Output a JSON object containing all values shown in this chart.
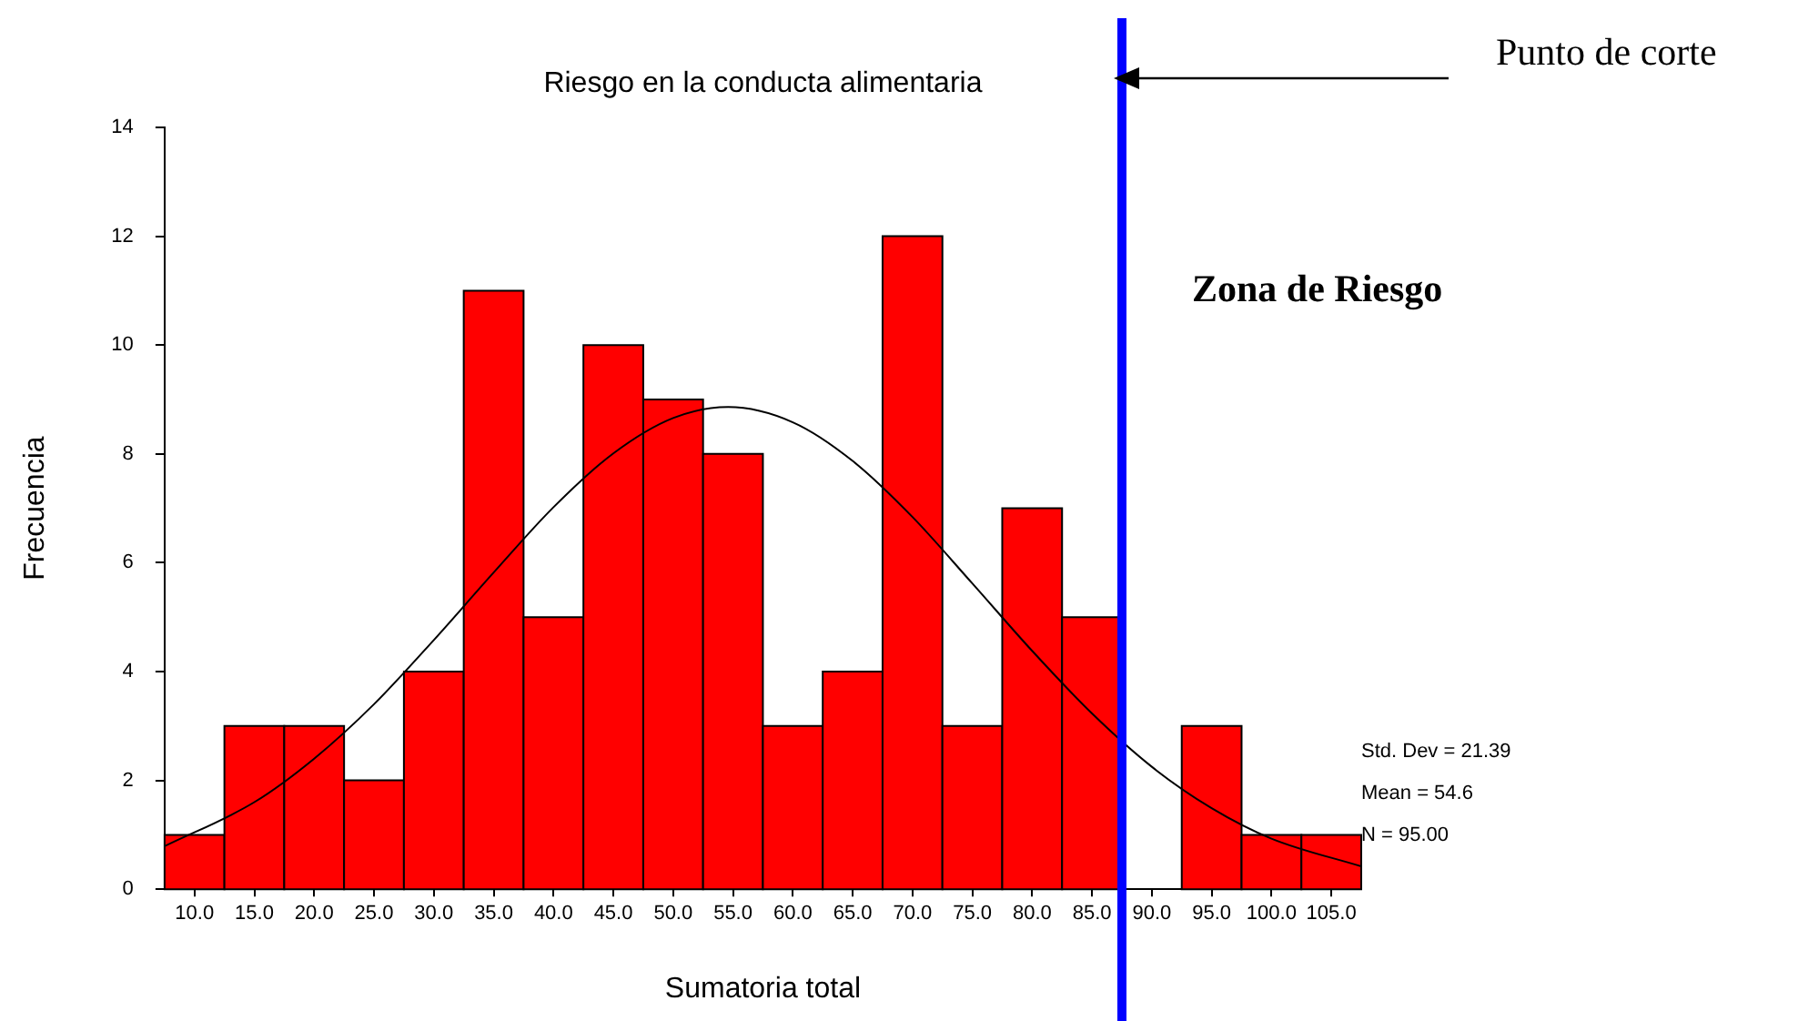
{
  "chart_data": {
    "type": "histogram",
    "title": "Riesgo en la conducta alimentaria",
    "xlabel": "Sumatoria total",
    "ylabel": "Frecuencia",
    "bins": [
      7.5,
      12.5,
      17.5,
      22.5,
      27.5,
      32.5,
      37.5,
      42.5,
      47.5,
      52.5,
      57.5,
      62.5,
      67.5,
      72.5,
      77.5,
      82.5,
      87.5,
      92.5,
      97.5,
      102.5,
      107.5
    ],
    "values": [
      1,
      3,
      3,
      2,
      4,
      11,
      5,
      10,
      9,
      8,
      3,
      4,
      12,
      3,
      7,
      5,
      0,
      3,
      1,
      1
    ],
    "color": "#ff0000",
    "series": [
      {
        "type": "line",
        "color": "#000000",
        "x": [
          7.5,
          15,
          20,
          25,
          30,
          35,
          40,
          45,
          50,
          54.6,
          60,
          65,
          70,
          75,
          80,
          85,
          90,
          95,
          100,
          107.5
        ],
        "values": [
          0.79,
          1.6,
          2.4,
          3.4,
          4.58,
          5.82,
          7.02,
          8.01,
          8.66,
          8.86,
          8.58,
          7.87,
          6.84,
          5.62,
          4.38,
          3.23,
          2.25,
          1.49,
          0.93,
          0.42
        ]
      }
    ],
    "xlim": [
      7.5,
      107.5
    ],
    "xticks": [
      {
        "value": 10,
        "label": "10.0"
      },
      {
        "value": 15,
        "label": "15.0"
      },
      {
        "value": 20,
        "label": "20.0"
      },
      {
        "value": 25,
        "label": "25.0"
      },
      {
        "value": 30,
        "label": "30.0"
      },
      {
        "value": 35,
        "label": "35.0"
      },
      {
        "value": 40,
        "label": "40.0"
      },
      {
        "value": 45,
        "label": "45.0"
      },
      {
        "value": 50,
        "label": "50.0"
      },
      {
        "value": 55,
        "label": "55.0"
      },
      {
        "value": 60,
        "label": "60.0"
      },
      {
        "value": 65,
        "label": "65.0"
      },
      {
        "value": 70,
        "label": "70.0"
      },
      {
        "value": 75,
        "label": "75.0"
      },
      {
        "value": 80,
        "label": "80.0"
      },
      {
        "value": 85,
        "label": "85.0"
      },
      {
        "value": 90,
        "label": "90.0"
      },
      {
        "value": 95,
        "label": "95.0"
      },
      {
        "value": 100,
        "label": "100.0"
      },
      {
        "value": 105,
        "label": "105.0"
      }
    ],
    "ylim": [
      0,
      14
    ],
    "yticks": [
      0,
      2,
      4,
      6,
      8,
      10,
      12,
      14
    ],
    "grid": false,
    "legend": false,
    "ref_lines": [
      {
        "axis": "x",
        "value": 87.5,
        "label": "Punto de corte",
        "color": "#0000ff"
      }
    ],
    "annotations": [
      "Zona de Riesgo",
      "Std. Dev = 21.39",
      "Mean = 54.6",
      "N = 95.00"
    ]
  }
}
